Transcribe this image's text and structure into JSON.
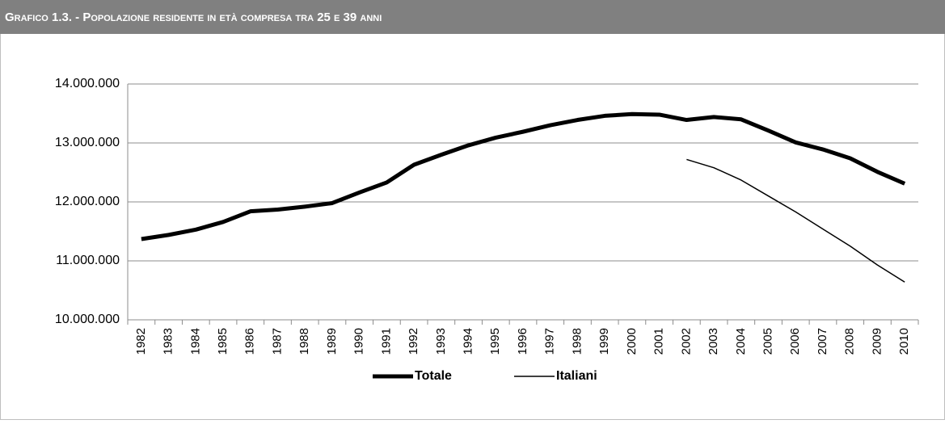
{
  "chart_data": {
    "type": "line",
    "title": "Grafico 1.3. - Popolazione residente in età compresa tra 25 e 39 anni",
    "categories": [
      "1982",
      "1983",
      "1984",
      "1985",
      "1986",
      "1987",
      "1988",
      "1989",
      "1990",
      "1991",
      "1992",
      "1993",
      "1994",
      "1995",
      "1996",
      "1997",
      "1998",
      "1999",
      "2000",
      "2001",
      "2002",
      "2003",
      "2004",
      "2005",
      "2006",
      "2007",
      "2008",
      "2009",
      "2010"
    ],
    "series": [
      {
        "name": "Totale",
        "color": "#000000",
        "values": [
          11370000,
          11440000,
          11530000,
          11660000,
          11840000,
          11870000,
          11920000,
          11980000,
          12160000,
          12330000,
          12630000,
          12800000,
          12960000,
          13090000,
          13190000,
          13300000,
          13390000,
          13460000,
          13490000,
          13480000,
          13390000,
          13440000,
          13400000,
          13210000,
          13010000,
          12890000,
          12740000,
          12510000,
          12310000
        ]
      },
      {
        "name": "Italiani",
        "color": "#000000",
        "values": [
          null,
          null,
          null,
          null,
          null,
          null,
          null,
          null,
          null,
          null,
          null,
          null,
          null,
          null,
          null,
          null,
          null,
          null,
          null,
          null,
          12720000,
          12580000,
          12370000,
          12100000,
          11830000,
          11540000,
          11250000,
          10930000,
          10640000
        ]
      }
    ],
    "ylim": [
      10000000,
      14000000
    ],
    "yticks": [
      {
        "value": 10000000,
        "label": "10.000.000"
      },
      {
        "value": 11000000,
        "label": "11.000.000"
      },
      {
        "value": 12000000,
        "label": "12.000.000"
      },
      {
        "value": 13000000,
        "label": "13.000.000"
      },
      {
        "value": 14000000,
        "label": "14.000.000"
      }
    ],
    "grid": true,
    "legend": "bottom"
  }
}
